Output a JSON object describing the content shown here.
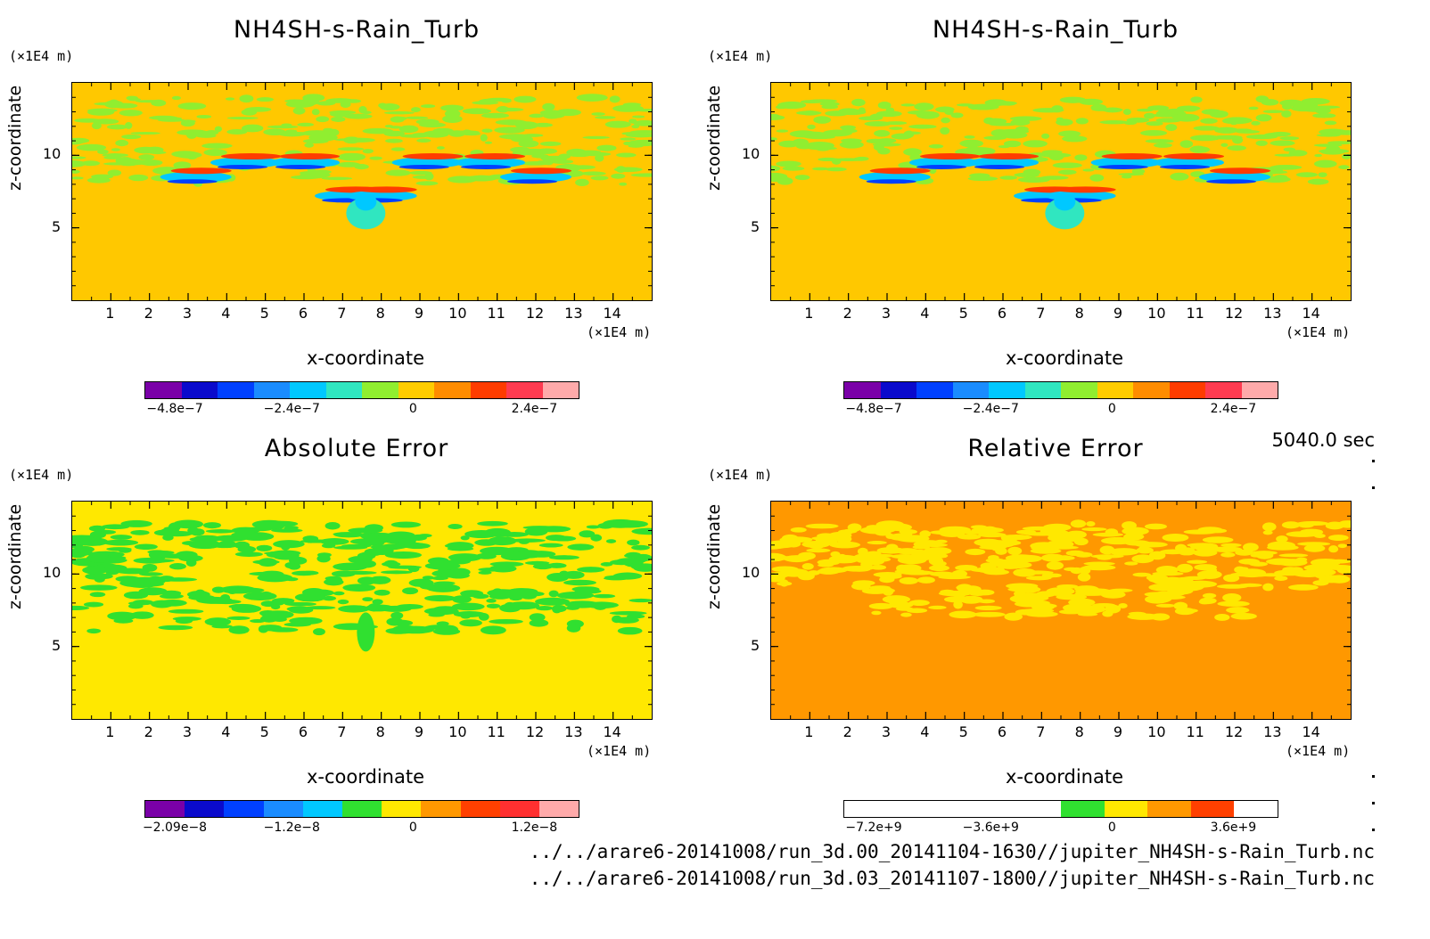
{
  "chart_data": [
    {
      "type": "heatmap",
      "title": "NH4SH-s-Rain_Turb",
      "xlabel": "x-coordinate",
      "ylabel": "z-coordinate",
      "x_unit": "(×1E4 m)",
      "y_unit": "(×1E4 m)",
      "x_ticks": [
        "1",
        "2",
        "3",
        "4",
        "5",
        "6",
        "7",
        "8",
        "9",
        "10",
        "11",
        "12",
        "13",
        "14"
      ],
      "y_ticks": [
        "5",
        "10"
      ],
      "xlim": [
        0,
        15
      ],
      "ylim": [
        0,
        15
      ],
      "colorbar_ticks": [
        "−4.8e−7",
        "−2.4e−7",
        "0",
        "2.4e−7"
      ],
      "colorbar_colors": [
        "#7a00a8",
        "#0a0acc",
        "#0040ff",
        "#1a8cff",
        "#00c8ff",
        "#30e6c0",
        "#90ee30",
        "#ffcc00",
        "#ff8c00",
        "#ff3c00",
        "#ff3b50",
        "#ffaaaa"
      ],
      "background": "#ffc800"
    },
    {
      "type": "heatmap",
      "title": "NH4SH-s-Rain_Turb",
      "xlabel": "x-coordinate",
      "ylabel": "z-coordinate",
      "x_unit": "(×1E4 m)",
      "y_unit": "(×1E4 m)",
      "x_ticks": [
        "1",
        "2",
        "3",
        "4",
        "5",
        "6",
        "7",
        "8",
        "9",
        "10",
        "11",
        "12",
        "13",
        "14"
      ],
      "y_ticks": [
        "5",
        "10"
      ],
      "xlim": [
        0,
        15
      ],
      "ylim": [
        0,
        15
      ],
      "colorbar_ticks": [
        "−4.8e−7",
        "−2.4e−7",
        "0",
        "2.4e−7"
      ],
      "colorbar_colors": [
        "#7a00a8",
        "#0a0acc",
        "#0040ff",
        "#1a8cff",
        "#00c8ff",
        "#30e6c0",
        "#90ee30",
        "#ffcc00",
        "#ff8c00",
        "#ff3c00",
        "#ff3b50",
        "#ffaaaa"
      ],
      "background": "#ffc800"
    },
    {
      "type": "heatmap",
      "title": "Absolute Error",
      "xlabel": "x-coordinate",
      "ylabel": "z-coordinate",
      "x_unit": "(×1E4 m)",
      "y_unit": "(×1E4 m)",
      "x_ticks": [
        "1",
        "2",
        "3",
        "4",
        "5",
        "6",
        "7",
        "8",
        "9",
        "10",
        "11",
        "12",
        "13",
        "14"
      ],
      "y_ticks": [
        "5",
        "10"
      ],
      "xlim": [
        0,
        15
      ],
      "ylim": [
        0,
        15
      ],
      "colorbar_ticks": [
        "−2.09e−8",
        "−1.2e−8",
        "0",
        "1.2e−8"
      ],
      "colorbar_colors": [
        "#7a00a8",
        "#0a0acc",
        "#0040ff",
        "#1a8cff",
        "#00c8ff",
        "#30e030",
        "#ffe800",
        "#ff9800",
        "#ff4000",
        "#ff3030",
        "#ffaaaa"
      ],
      "background": "#ffe800"
    },
    {
      "type": "heatmap",
      "title": "Relative Error",
      "xlabel": "x-coordinate",
      "ylabel": "z-coordinate",
      "x_unit": "(×1E4 m)",
      "y_unit": "(×1E4 m)",
      "x_ticks": [
        "1",
        "2",
        "3",
        "4",
        "5",
        "6",
        "7",
        "8",
        "9",
        "10",
        "11",
        "12",
        "13",
        "14"
      ],
      "y_ticks": [
        "5",
        "10"
      ],
      "xlim": [
        0,
        15
      ],
      "ylim": [
        0,
        15
      ],
      "colorbar_ticks": [
        "−7.2e+9",
        "−3.6e+9",
        "0",
        "3.6e+9"
      ],
      "colorbar_colors": [
        "#ffffff",
        "#ffffff",
        "#ffffff",
        "#ffffff",
        "#ffffff",
        "#30e030",
        "#ffe800",
        "#ff9800",
        "#ff4000",
        "#ffffff"
      ],
      "background": "#ff9800"
    }
  ],
  "time_label": "5040.0 sec",
  "files": [
    "../../arare6-20141008/run_3d.00_20141104-1630//jupiter_NH4SH-s-Rain_Turb.nc",
    "../../arare6-20141008/run_3d.03_20141107-1800//jupiter_NH4SH-s-Rain_Turb.nc"
  ]
}
